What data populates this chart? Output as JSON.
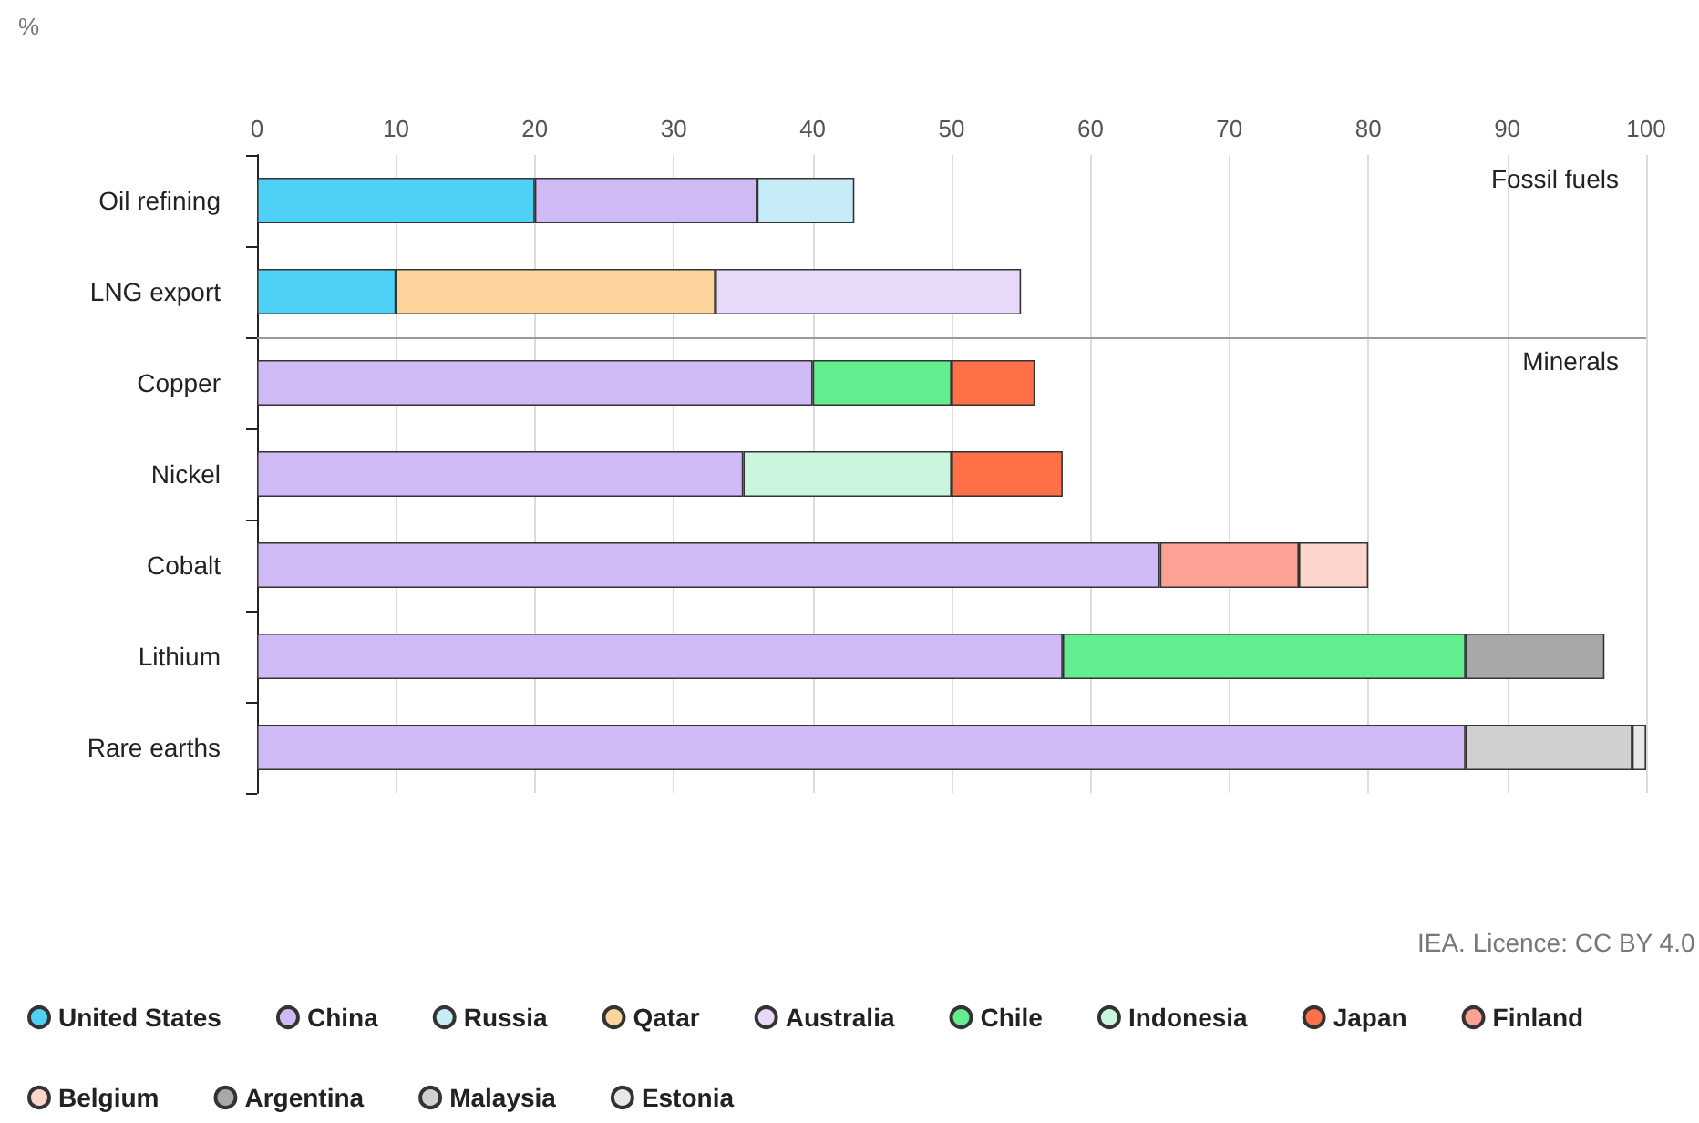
{
  "chart_data": {
    "type": "bar",
    "orientation": "horizontal",
    "stacked": true,
    "xlabel": "%",
    "categories": [
      "Oil refining",
      "LNG export",
      "Copper",
      "Nickel",
      "Cobalt",
      "Lithium",
      "Rare earths"
    ],
    "xlim": [
      0,
      100
    ],
    "xticks": [
      0,
      10,
      20,
      30,
      40,
      50,
      60,
      70,
      80,
      90,
      100
    ],
    "grid": "x",
    "legend": "bottom",
    "annotations": [
      "Fossil fuels",
      "IEA. Licence: CC BY 4.0"
    ],
    "ref_lines": [
      {
        "axis": "y",
        "value": "Copper",
        "label": "Minerals",
        "color": "#999999"
      }
    ],
    "series": [
      {
        "name": "United States",
        "color": "#4fd0f7",
        "values": [
          20,
          10,
          null,
          null,
          null,
          null,
          null
        ]
      },
      {
        "name": "China",
        "color": "#cfbaf5",
        "values": [
          16,
          null,
          40,
          35,
          65,
          58,
          87
        ]
      },
      {
        "name": "Russia",
        "color": "#c6ecf8",
        "values": [
          7,
          null,
          null,
          null,
          null,
          null,
          null
        ]
      },
      {
        "name": "Qatar",
        "color": "#fdd49b",
        "values": [
          null,
          23,
          null,
          null,
          null,
          null,
          null
        ]
      },
      {
        "name": "Australia",
        "color": "#e9d9f8",
        "values": [
          null,
          22,
          null,
          null,
          null,
          null,
          null
        ]
      },
      {
        "name": "Chile",
        "color": "#64ed8f",
        "values": [
          null,
          null,
          10,
          null,
          null,
          29,
          null
        ]
      },
      {
        "name": "Indonesia",
        "color": "#caf6dd",
        "values": [
          null,
          null,
          null,
          15,
          null,
          null,
          null
        ]
      },
      {
        "name": "Japan",
        "color": "#ff7049",
        "values": [
          null,
          null,
          6,
          8,
          null,
          null,
          null
        ]
      },
      {
        "name": "Finland",
        "color": "#fca195",
        "values": [
          null,
          null,
          null,
          null,
          10,
          null,
          null
        ]
      },
      {
        "name": "Belgium",
        "color": "#fdd5cd",
        "values": [
          null,
          null,
          null,
          null,
          5,
          null,
          null
        ]
      },
      {
        "name": "Argentina",
        "color": "#a8a8a8",
        "values": [
          null,
          null,
          null,
          null,
          null,
          10,
          null
        ]
      },
      {
        "name": "Malaysia",
        "color": "#d0d0d0",
        "values": [
          null,
          null,
          null,
          null,
          null,
          null,
          12
        ]
      },
      {
        "name": "Estonia",
        "color": "#e8e8e8",
        "values": [
          null,
          null,
          null,
          null,
          null,
          null,
          1
        ]
      }
    ]
  }
}
